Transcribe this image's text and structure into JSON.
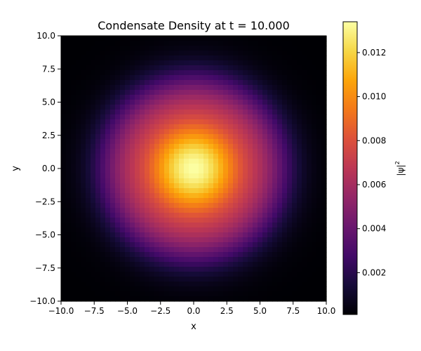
{
  "chart_data": {
    "type": "heatmap",
    "title": "Condensate Density at t = 10.000",
    "xlabel": "x",
    "ylabel": "y",
    "xlim": [
      -10,
      10
    ],
    "ylim": [
      -10,
      10
    ],
    "xticks": [
      "−10.0",
      "−7.5",
      "−5.0",
      "−2.5",
      "0.0",
      "2.5",
      "5.0",
      "7.5",
      "10.0"
    ],
    "yticks": [
      "10.0",
      "7.5",
      "5.0",
      "2.5",
      "0.0",
      "−2.5",
      "−5.0",
      "−7.5",
      "−10.0"
    ],
    "colormap": "inferno",
    "grid": false,
    "colorbar": {
      "label_base": "|ψ|",
      "label_exp": "2",
      "range": [
        0.0001,
        0.0134
      ],
      "ticks": [
        0.002,
        0.004,
        0.006,
        0.008,
        0.01,
        0.012
      ],
      "tick_labels": [
        "0.002",
        "0.004",
        "0.006",
        "0.008",
        "0.010",
        "0.012"
      ]
    },
    "field": {
      "center": [
        0.0,
        0.0
      ],
      "peak": 0.0134,
      "baseline": 0.0001,
      "gaussian_sigma": 3.2,
      "ring_radius": 5.6,
      "ring_width": 2.1,
      "ring_amplitude": 0.0024
    }
  }
}
